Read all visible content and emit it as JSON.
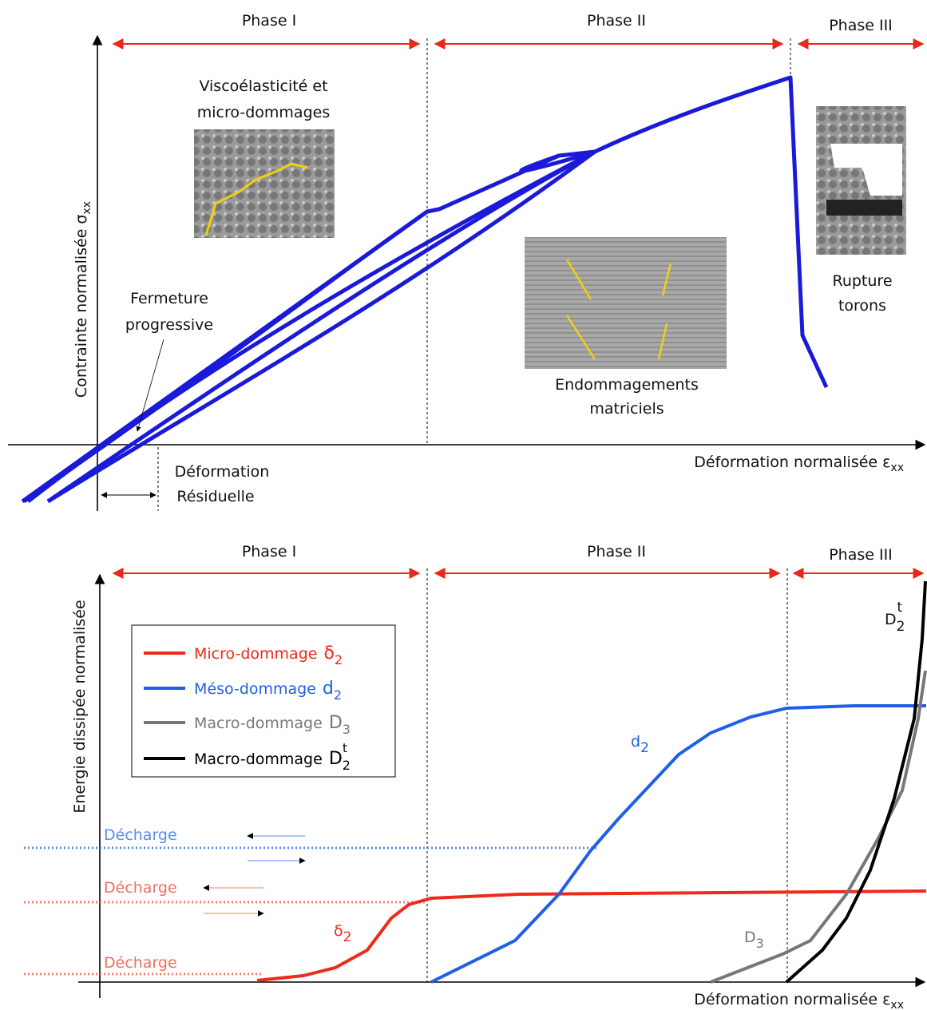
{
  "top": {
    "phases": [
      "Phase I",
      "Phase II",
      "Phase III"
    ],
    "y_label": {
      "text": "Contrainte normalisée",
      "symbol": "σ",
      "subscript": "xx"
    },
    "x_label": {
      "text": "Déformation normalisée",
      "symbol": "ε",
      "subscript": "xx"
    },
    "annotations": {
      "viscoelasticity": [
        "Viscoélasticité et",
        "micro-dommages"
      ],
      "closure": [
        "Fermeture",
        "progressive"
      ],
      "residual": [
        "Déformation",
        "Résiduelle"
      ],
      "matrix": [
        "Endommagements",
        "matriciels"
      ],
      "rupture": [
        "Rupture",
        "torons"
      ]
    }
  },
  "bottom": {
    "phases": [
      "Phase I",
      "Phase II",
      "Phase III"
    ],
    "y_label": "Energie dissipée normalisée",
    "x_label": {
      "text": "Déformation normalisée",
      "symbol": "ε",
      "subscript": "xx"
    },
    "legend": [
      {
        "name": "Micro-dommage",
        "symbol": "δ",
        "subscript": "2",
        "color": "#ee2a1b"
      },
      {
        "name": "Méso-dommage",
        "symbol": "d",
        "subscript": "2",
        "color": "#1f5fe8"
      },
      {
        "name": "Macro-dommage",
        "symbol": "D",
        "subscript": "3",
        "color": "#777777"
      },
      {
        "name": "Macro-dommage",
        "symbol": "D",
        "subscript": "2",
        "superscript": "t",
        "color": "#000000"
      }
    ],
    "curve_labels": [
      {
        "symbol": "δ",
        "subscript": "2"
      },
      {
        "symbol": "d",
        "subscript": "2"
      },
      {
        "symbol": "D",
        "subscript": "3"
      },
      {
        "symbol": "D",
        "subscript": "2",
        "superscript": "t"
      }
    ],
    "unloading": [
      "Décharge",
      "Décharge",
      "Décharge"
    ]
  }
}
